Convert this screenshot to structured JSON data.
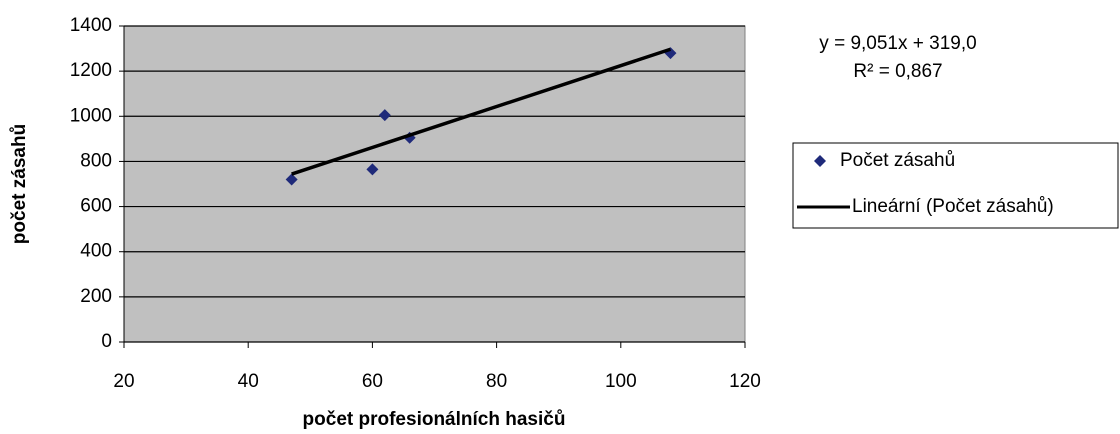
{
  "chart_data": {
    "type": "scatter",
    "x_label": "počet profesionálních hasičů",
    "y_label": "počet zásahů",
    "annotations": [
      "y = 9,051x + 319,0",
      "R² = 0,867"
    ],
    "series": [
      {
        "name": "Počet zásahů",
        "color": "#1f2a7a",
        "style": "marker",
        "x": [
          47,
          60,
          62,
          66,
          108
        ],
        "values": [
          720,
          765,
          1005,
          905,
          1280
        ]
      },
      {
        "name": "Lineární (Počet zásahů)",
        "color": "#000000",
        "style": "line",
        "x": [
          47,
          108
        ],
        "values": [
          744,
          1297
        ]
      }
    ],
    "xlim": [
      20,
      120
    ],
    "xticks": [
      20,
      40,
      60,
      80,
      100,
      120
    ],
    "ylim": [
      0,
      1400
    ],
    "yticks": [
      0,
      200,
      400,
      600,
      800,
      1000,
      1200,
      1400
    ],
    "grid": true,
    "background": "#c0c0c0",
    "legend": "right"
  }
}
